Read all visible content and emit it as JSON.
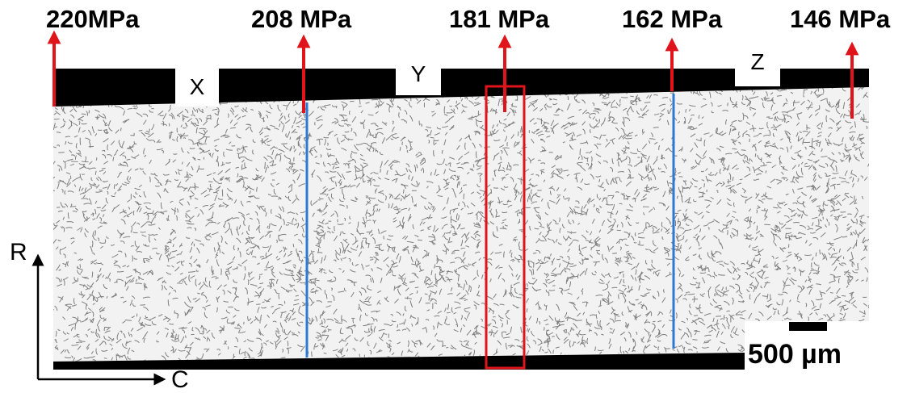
{
  "stress_labels": [
    "220MPa",
    "208 MPa",
    "181 MPa",
    "162 MPa",
    "146 MPa"
  ],
  "zone_labels": [
    "X",
    "Y",
    "Z"
  ],
  "axes": {
    "vertical": "R",
    "horizontal": "C"
  },
  "scale_bar": {
    "text": "500 µm"
  },
  "colors": {
    "arrow": "#e0141b",
    "section_line": "#2f7ad1",
    "highlight_box": "#e0141b",
    "band": "#000000",
    "texture": "#1f1f1f"
  }
}
